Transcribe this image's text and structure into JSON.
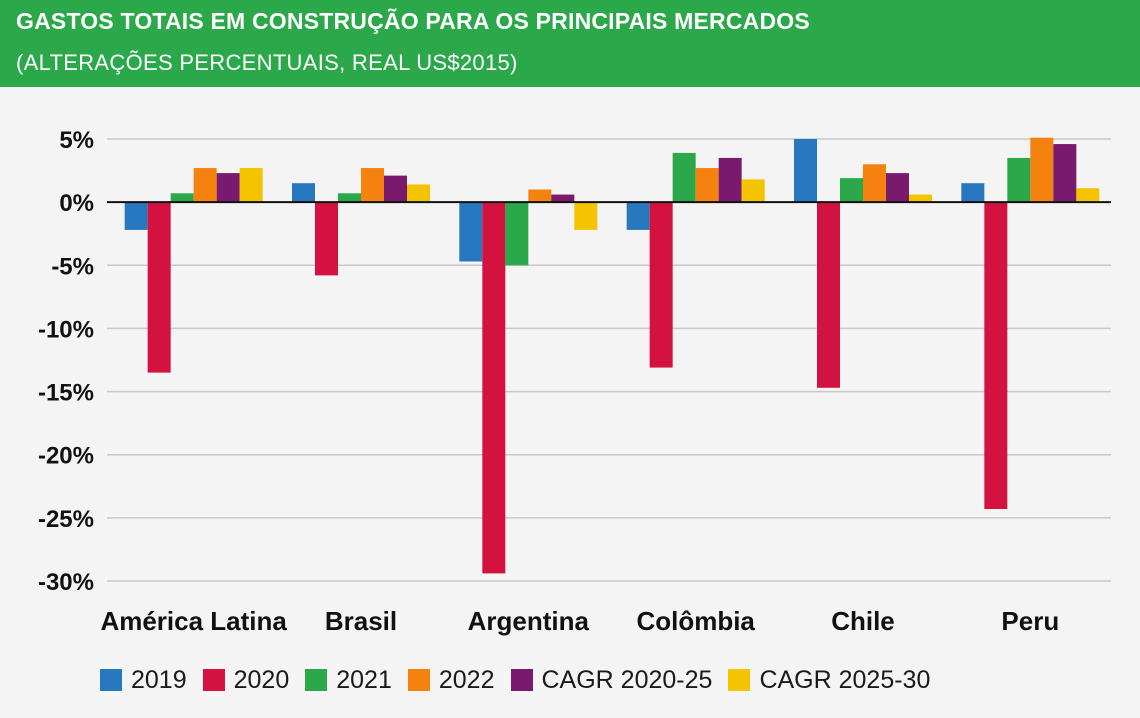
{
  "header": {
    "title": "GASTOS TOTAIS EM CONSTRUÇÃO PARA OS PRINCIPAIS MERCADOS",
    "subtitle": "(ALTERAÇÕES PERCENTUAIS, REAL US$2015)"
  },
  "colors": {
    "header_bg": "#2aa84a",
    "chart_bg": "#f4f4f4"
  },
  "chart_data": {
    "type": "bar",
    "title": "GASTOS TOTAIS EM CONSTRUÇÃO PARA OS PRINCIPAIS MERCADOS",
    "subtitle": "(ALTERAÇÕES PERCENTUAIS, REAL US$2015)",
    "xlabel": "",
    "ylabel": "",
    "ylim": [
      -30,
      5
    ],
    "yticks": [
      5,
      0,
      -5,
      -10,
      -15,
      -20,
      -25,
      -30
    ],
    "ytick_labels": [
      "5%",
      "0%",
      "-5%",
      "-10%",
      "-15%",
      "-20%",
      "-25%",
      "-30%"
    ],
    "grid": true,
    "legend_position": "bottom",
    "categories": [
      "América Latina",
      "Brasil",
      "Argentina",
      "Colômbia",
      "Chile",
      "Peru"
    ],
    "series": [
      {
        "name": "2019",
        "color": "#2878c0",
        "values": [
          -2.2,
          1.5,
          -4.7,
          -2.2,
          5.0,
          1.5
        ]
      },
      {
        "name": "2020",
        "color": "#d4123f",
        "values": [
          -13.5,
          -5.8,
          -29.4,
          -13.1,
          -14.7,
          -24.3
        ]
      },
      {
        "name": "2021",
        "color": "#2aa84a",
        "values": [
          0.7,
          0.7,
          -5.0,
          3.9,
          1.9,
          3.5
        ]
      },
      {
        "name": "2022",
        "color": "#f5820f",
        "values": [
          2.7,
          2.7,
          1.0,
          2.7,
          3.0,
          5.1
        ]
      },
      {
        "name": "CAGR 2020-25",
        "color": "#7a1a6e",
        "values": [
          2.3,
          2.1,
          0.6,
          3.5,
          2.3,
          4.6
        ]
      },
      {
        "name": "CAGR 2025-30",
        "color": "#f5c400",
        "values": [
          2.7,
          1.4,
          -2.2,
          1.8,
          0.6,
          1.1
        ]
      }
    ]
  }
}
